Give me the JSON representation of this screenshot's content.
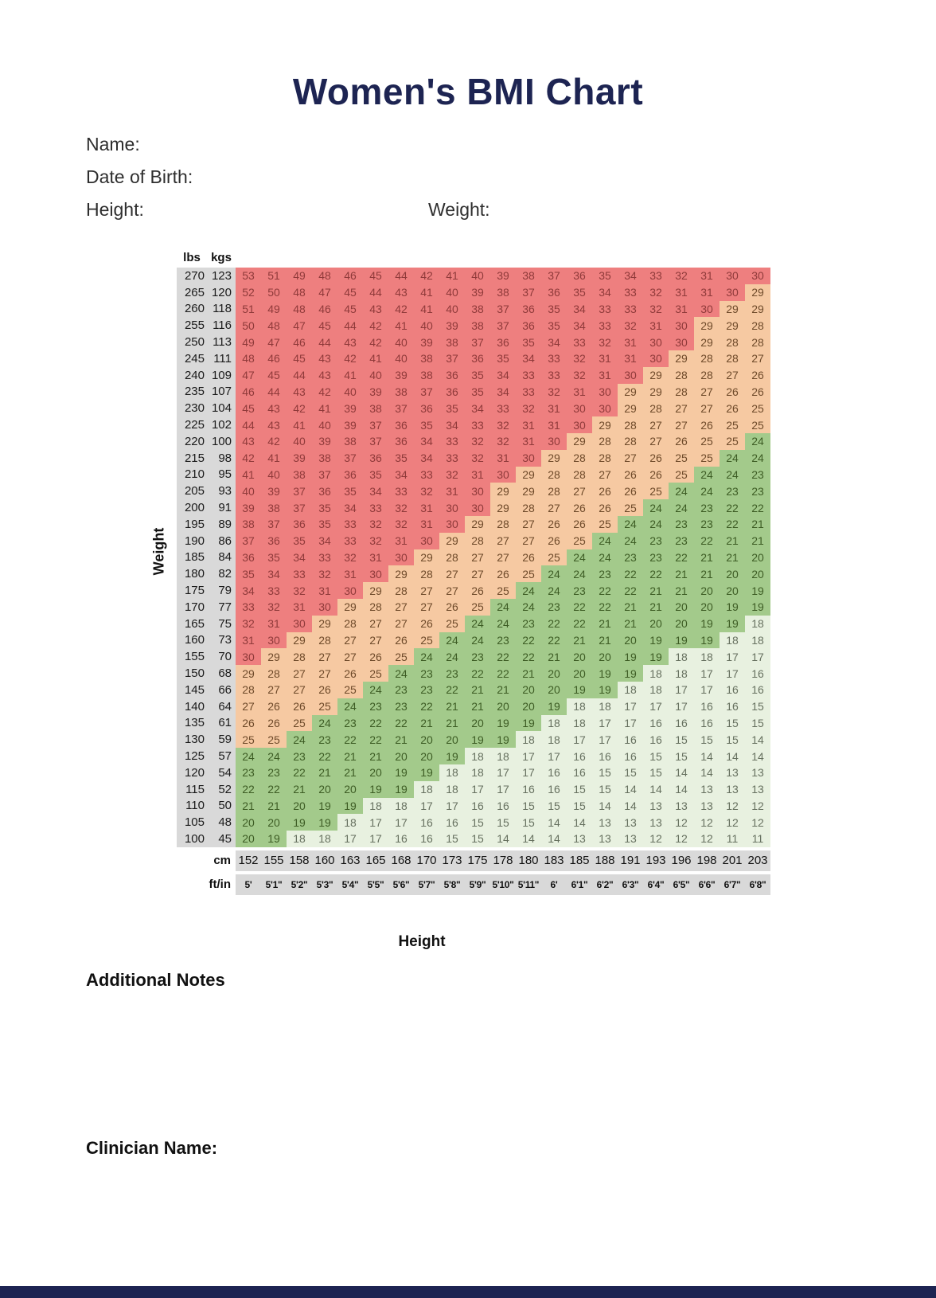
{
  "title": "Women's BMI Chart",
  "form": {
    "name_label": "Name:",
    "dob_label": "Date of Birth:",
    "height_label": "Height:",
    "weight_label": "Weight:"
  },
  "units": {
    "lbs": "lbs",
    "kgs": "kgs",
    "cm": "cm",
    "ftin": "ft/in"
  },
  "axes": {
    "weight": "Weight",
    "height": "Height"
  },
  "sections": {
    "additional_notes": "Additional Notes",
    "clinician_name": "Clinician Name:"
  },
  "colors": {
    "obese_bg": "#ee7f7f",
    "overweight_bg": "#f6c9a2",
    "normal_bg": "#a3ca8b",
    "underweight_bg": "#e8f1e0",
    "label_bg": "#d9d9d9",
    "navy": "#1d2452"
  },
  "chart_data": {
    "type": "heatmap",
    "xlabel": "Height",
    "ylabel": "Weight",
    "x_cm": [
      152,
      155,
      158,
      160,
      163,
      165,
      168,
      170,
      173,
      175,
      178,
      180,
      183,
      185,
      188,
      191,
      193,
      196,
      198,
      201,
      203
    ],
    "x_ftin": [
      "5'",
      "5'1\"",
      "5'2\"",
      "5'3\"",
      "5'4\"",
      "5'5\"",
      "5'6\"",
      "5'7\"",
      "5'8\"",
      "5'9\"",
      "5'10\"",
      "5'11\"",
      "6'",
      "6'1\"",
      "6'2\"",
      "6'3\"",
      "6'4\"",
      "6'5\"",
      "6'6\"",
      "6'7\"",
      "6'8\""
    ],
    "color_rule": {
      "red_obese": ">=30",
      "orange_overweight": "25-29",
      "green_normal": "19-24",
      "pale_underweight": "<=18"
    },
    "rows": [
      {
        "lbs": 270,
        "kgs": 123,
        "bmi": [
          53,
          51,
          49,
          48,
          46,
          45,
          44,
          42,
          41,
          40,
          39,
          38,
          37,
          36,
          35,
          34,
          33,
          32,
          31,
          30,
          30
        ]
      },
      {
        "lbs": 265,
        "kgs": 120,
        "bmi": [
          52,
          50,
          48,
          47,
          45,
          44,
          43,
          41,
          40,
          39,
          38,
          37,
          36,
          35,
          34,
          33,
          32,
          31,
          31,
          30,
          29
        ]
      },
      {
        "lbs": 260,
        "kgs": 118,
        "bmi": [
          51,
          49,
          48,
          46,
          45,
          43,
          42,
          41,
          40,
          38,
          37,
          36,
          35,
          34,
          33,
          33,
          32,
          31,
          30,
          29,
          29
        ]
      },
      {
        "lbs": 255,
        "kgs": 116,
        "bmi": [
          50,
          48,
          47,
          45,
          44,
          42,
          41,
          40,
          39,
          38,
          37,
          36,
          35,
          34,
          33,
          32,
          31,
          30,
          29,
          29,
          28
        ]
      },
      {
        "lbs": 250,
        "kgs": 113,
        "bmi": [
          49,
          47,
          46,
          44,
          43,
          42,
          40,
          39,
          38,
          37,
          36,
          35,
          34,
          33,
          32,
          31,
          30,
          30,
          29,
          28,
          28
        ]
      },
      {
        "lbs": 245,
        "kgs": 111,
        "bmi": [
          48,
          46,
          45,
          43,
          42,
          41,
          40,
          38,
          37,
          36,
          35,
          34,
          33,
          32,
          31,
          31,
          30,
          29,
          28,
          28,
          27
        ]
      },
      {
        "lbs": 240,
        "kgs": 109,
        "bmi": [
          47,
          45,
          44,
          43,
          41,
          40,
          39,
          38,
          36,
          35,
          34,
          33,
          33,
          32,
          31,
          30,
          29,
          28,
          28,
          27,
          26
        ]
      },
      {
        "lbs": 235,
        "kgs": 107,
        "bmi": [
          46,
          44,
          43,
          42,
          40,
          39,
          38,
          37,
          36,
          35,
          34,
          33,
          32,
          31,
          30,
          29,
          29,
          28,
          27,
          26,
          26
        ]
      },
      {
        "lbs": 230,
        "kgs": 104,
        "bmi": [
          45,
          43,
          42,
          41,
          39,
          38,
          37,
          36,
          35,
          34,
          33,
          32,
          31,
          30,
          30,
          29,
          28,
          27,
          27,
          26,
          25
        ]
      },
      {
        "lbs": 225,
        "kgs": 102,
        "bmi": [
          44,
          43,
          41,
          40,
          39,
          37,
          36,
          35,
          34,
          33,
          32,
          31,
          31,
          30,
          29,
          28,
          27,
          27,
          26,
          25,
          25
        ]
      },
      {
        "lbs": 220,
        "kgs": 100,
        "bmi": [
          43,
          42,
          40,
          39,
          38,
          37,
          36,
          34,
          33,
          32,
          32,
          31,
          30,
          29,
          28,
          28,
          27,
          26,
          25,
          25,
          24
        ]
      },
      {
        "lbs": 215,
        "kgs": 98,
        "bmi": [
          42,
          41,
          39,
          38,
          37,
          36,
          35,
          34,
          33,
          32,
          31,
          30,
          29,
          28,
          28,
          27,
          26,
          25,
          25,
          24,
          24
        ]
      },
      {
        "lbs": 210,
        "kgs": 95,
        "bmi": [
          41,
          40,
          38,
          37,
          36,
          35,
          34,
          33,
          32,
          31,
          30,
          29,
          28,
          28,
          27,
          26,
          26,
          25,
          24,
          24,
          23
        ]
      },
      {
        "lbs": 205,
        "kgs": 93,
        "bmi": [
          40,
          39,
          37,
          36,
          35,
          34,
          33,
          32,
          31,
          30,
          29,
          29,
          28,
          27,
          26,
          26,
          25,
          24,
          24,
          23,
          23
        ]
      },
      {
        "lbs": 200,
        "kgs": 91,
        "bmi": [
          39,
          38,
          37,
          35,
          34,
          33,
          32,
          31,
          30,
          30,
          29,
          28,
          27,
          26,
          26,
          25,
          24,
          24,
          23,
          22,
          22
        ]
      },
      {
        "lbs": 195,
        "kgs": 89,
        "bmi": [
          38,
          37,
          36,
          35,
          33,
          32,
          32,
          31,
          30,
          29,
          28,
          27,
          26,
          26,
          25,
          24,
          24,
          23,
          23,
          22,
          21
        ]
      },
      {
        "lbs": 190,
        "kgs": 86,
        "bmi": [
          37,
          36,
          35,
          34,
          33,
          32,
          31,
          30,
          29,
          28,
          27,
          27,
          26,
          25,
          24,
          24,
          23,
          23,
          22,
          21,
          21
        ]
      },
      {
        "lbs": 185,
        "kgs": 84,
        "bmi": [
          36,
          35,
          34,
          33,
          32,
          31,
          30,
          29,
          28,
          27,
          27,
          26,
          25,
          24,
          24,
          23,
          23,
          22,
          21,
          21,
          20
        ]
      },
      {
        "lbs": 180,
        "kgs": 82,
        "bmi": [
          35,
          34,
          33,
          32,
          31,
          30,
          29,
          28,
          27,
          27,
          26,
          25,
          24,
          24,
          23,
          22,
          22,
          21,
          21,
          20,
          20
        ]
      },
      {
        "lbs": 175,
        "kgs": 79,
        "bmi": [
          34,
          33,
          32,
          31,
          30,
          29,
          28,
          27,
          27,
          26,
          25,
          24,
          24,
          23,
          22,
          22,
          21,
          21,
          20,
          20,
          19
        ]
      },
      {
        "lbs": 170,
        "kgs": 77,
        "bmi": [
          33,
          32,
          31,
          30,
          29,
          28,
          27,
          27,
          26,
          25,
          24,
          24,
          23,
          22,
          22,
          21,
          21,
          20,
          20,
          19,
          19
        ]
      },
      {
        "lbs": 165,
        "kgs": 75,
        "bmi": [
          32,
          31,
          30,
          29,
          28,
          27,
          27,
          26,
          25,
          24,
          24,
          23,
          22,
          22,
          21,
          21,
          20,
          20,
          19,
          19,
          18
        ]
      },
      {
        "lbs": 160,
        "kgs": 73,
        "bmi": [
          31,
          30,
          29,
          28,
          27,
          27,
          26,
          25,
          24,
          24,
          23,
          22,
          22,
          21,
          21,
          20,
          19,
          19,
          19,
          18,
          18
        ]
      },
      {
        "lbs": 155,
        "kgs": 70,
        "bmi": [
          30,
          29,
          28,
          27,
          27,
          26,
          25,
          24,
          24,
          23,
          22,
          22,
          21,
          20,
          20,
          19,
          19,
          18,
          18,
          17,
          17
        ]
      },
      {
        "lbs": 150,
        "kgs": 68,
        "bmi": [
          29,
          28,
          27,
          27,
          26,
          25,
          24,
          23,
          23,
          22,
          22,
          21,
          20,
          20,
          19,
          19,
          18,
          18,
          17,
          17,
          16
        ]
      },
      {
        "lbs": 145,
        "kgs": 66,
        "bmi": [
          28,
          27,
          27,
          26,
          25,
          24,
          23,
          23,
          22,
          21,
          21,
          20,
          20,
          19,
          19,
          18,
          18,
          17,
          17,
          16,
          16
        ]
      },
      {
        "lbs": 140,
        "kgs": 64,
        "bmi": [
          27,
          26,
          26,
          25,
          24,
          23,
          23,
          22,
          21,
          21,
          20,
          20,
          19,
          18,
          18,
          17,
          17,
          17,
          16,
          16,
          15
        ]
      },
      {
        "lbs": 135,
        "kgs": 61,
        "bmi": [
          26,
          26,
          25,
          24,
          23,
          22,
          22,
          21,
          21,
          20,
          19,
          19,
          18,
          18,
          17,
          17,
          16,
          16,
          16,
          15,
          15
        ]
      },
      {
        "lbs": 130,
        "kgs": 59,
        "bmi": [
          25,
          25,
          24,
          23,
          22,
          22,
          21,
          20,
          20,
          19,
          19,
          18,
          18,
          17,
          17,
          16,
          16,
          15,
          15,
          15,
          14
        ]
      },
      {
        "lbs": 125,
        "kgs": 57,
        "bmi": [
          24,
          24,
          23,
          22,
          21,
          21,
          20,
          20,
          19,
          18,
          18,
          17,
          17,
          16,
          16,
          16,
          15,
          15,
          14,
          14,
          14
        ]
      },
      {
        "lbs": 120,
        "kgs": 54,
        "bmi": [
          23,
          23,
          22,
          21,
          21,
          20,
          19,
          19,
          18,
          18,
          17,
          17,
          16,
          16,
          15,
          15,
          15,
          14,
          14,
          13,
          13
        ]
      },
      {
        "lbs": 115,
        "kgs": 52,
        "bmi": [
          22,
          22,
          21,
          20,
          20,
          19,
          19,
          18,
          18,
          17,
          17,
          16,
          16,
          15,
          15,
          14,
          14,
          14,
          13,
          13,
          13
        ]
      },
      {
        "lbs": 110,
        "kgs": 50,
        "bmi": [
          21,
          21,
          20,
          19,
          19,
          18,
          18,
          17,
          17,
          16,
          16,
          15,
          15,
          15,
          14,
          14,
          13,
          13,
          13,
          12,
          12
        ]
      },
      {
        "lbs": 105,
        "kgs": 48,
        "bmi": [
          20,
          20,
          19,
          19,
          18,
          17,
          17,
          16,
          16,
          15,
          15,
          15,
          14,
          14,
          13,
          13,
          13,
          12,
          12,
          12,
          12
        ]
      },
      {
        "lbs": 100,
        "kgs": 45,
        "bmi": [
          20,
          19,
          18,
          18,
          17,
          17,
          16,
          16,
          15,
          15,
          14,
          14,
          14,
          13,
          13,
          13,
          12,
          12,
          12,
          11,
          11
        ]
      }
    ]
  }
}
